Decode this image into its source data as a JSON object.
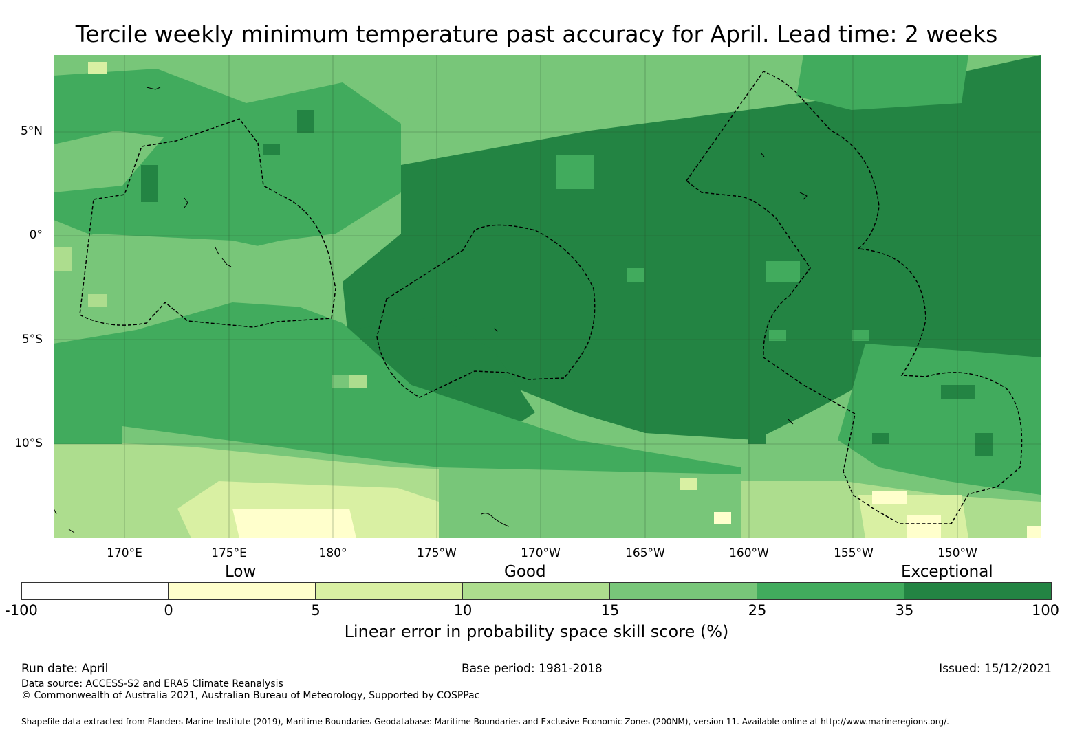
{
  "title": "Tercile weekly minimum temperature past accuracy for April. Lead time: 2 weeks",
  "map": {
    "latitude_labels": [
      "5°N",
      "0°",
      "5°S",
      "10°S"
    ],
    "longitude_labels": [
      "170°E",
      "175°E",
      "180°",
      "175°W",
      "170°W",
      "165°W",
      "160°W",
      "155°W",
      "150°W"
    ],
    "colors": {
      "background": "#78c679",
      "land_outline": "#000000",
      "boundary_dashes": "#000000",
      "gridlines": "#2a4a2a"
    }
  },
  "legend": {
    "band_labels": [
      "Low",
      "Good",
      "Exceptional"
    ],
    "ticks": [
      "-100",
      "0",
      "5",
      "10",
      "15",
      "25",
      "35",
      "100"
    ],
    "segments": [
      {
        "from": -100,
        "to": 0,
        "color": "#ffffff"
      },
      {
        "from": 0,
        "to": 5,
        "color": "#ffffcc"
      },
      {
        "from": 5,
        "to": 10,
        "color": "#d9f0a3"
      },
      {
        "from": 10,
        "to": 15,
        "color": "#addd8e"
      },
      {
        "from": 15,
        "to": 25,
        "color": "#78c679"
      },
      {
        "from": 25,
        "to": 35,
        "color": "#41ab5d"
      },
      {
        "from": 35,
        "to": 100,
        "color": "#238443"
      }
    ],
    "title": "Linear error in probability space skill score (%)"
  },
  "footer": {
    "run_date": "Run date: April",
    "base_period": "Base period: 1981-2018",
    "issued": "Issued: 15/12/2021",
    "data_source": "Data source: ACCESS-S2 and ERA5 Climate Reanalysis",
    "copyright": "© Commonwealth of Australia 2021, Australian Bureau of Meteorology, Supported by COSPPac",
    "shapefile_note": "Shapefile data extracted from Flanders Marine Institute (2019), Maritime Boundaries Geodatabase: Maritime Boundaries and Exclusive Economic Zones (200NM), version 11. Available online at http://www.marineregions.org/."
  }
}
